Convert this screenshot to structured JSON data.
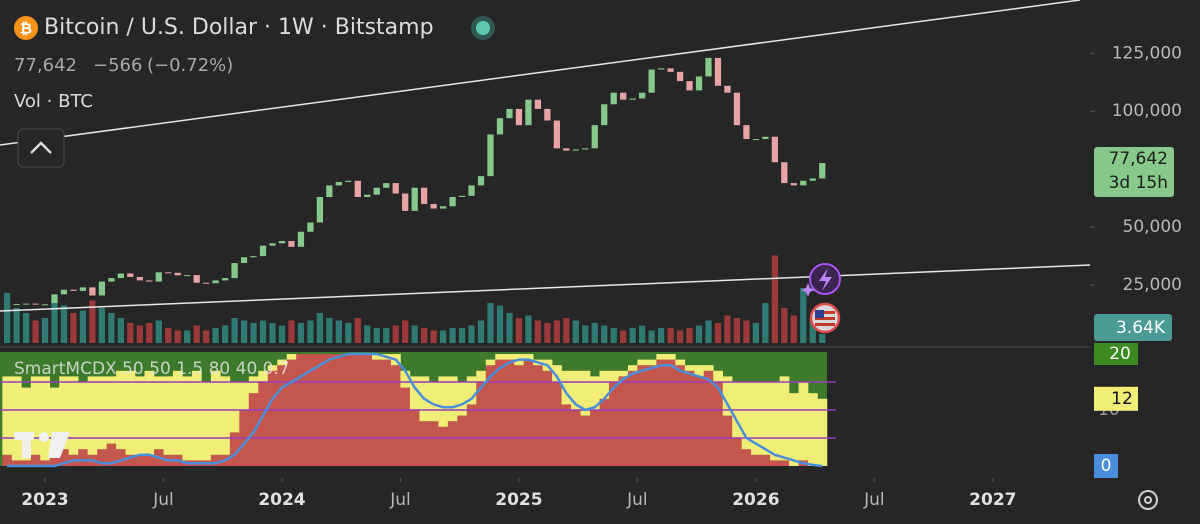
{
  "header": {
    "title": "Bitcoin / U.S. Dollar · 1W · Bitstamp",
    "price": "77,642",
    "change": "−566",
    "change_pct": "(−0.72%)",
    "volume_label": "Vol · BTC"
  },
  "chart_data": [
    {
      "type": "candlestick",
      "x": [
        2022.84,
        2022.88,
        2022.92,
        2022.96,
        2023,
        2023.04,
        2023.08,
        2023.12,
        2023.16,
        2023.2,
        2023.24,
        2023.28,
        2023.32,
        2023.36,
        2023.4,
        2023.44,
        2023.48,
        2023.52,
        2023.56,
        2023.6,
        2023.64,
        2023.68,
        2023.72,
        2023.76,
        2023.8,
        2023.84,
        2023.88,
        2023.92,
        2023.96,
        2024,
        2024.04,
        2024.08,
        2024.12,
        2024.16,
        2024.2,
        2024.24,
        2024.28,
        2024.32,
        2024.36,
        2024.4,
        2024.44,
        2024.48,
        2024.52,
        2024.56,
        2024.6,
        2024.64,
        2024.68,
        2024.72,
        2024.76,
        2024.8,
        2024.84,
        2024.88,
        2024.92,
        2024.96,
        2025,
        2025.04,
        2025.08,
        2025.12,
        2025.16,
        2025.2,
        2025.24,
        2025.28,
        2025.32,
        2025.36,
        2025.4,
        2025.44,
        2025.48,
        2025.52,
        2025.56,
        2025.6,
        2025.64,
        2025.68,
        2025.72,
        2025.76,
        2025.8,
        2025.84,
        2025.88,
        2025.92,
        2025.96,
        2026,
        2026.04,
        2026.08,
        2026.12,
        2026.16,
        2026.2,
        2026.24,
        2026.28
      ],
      "values": [
        16500,
        16800,
        17000,
        16600,
        16700,
        21000,
        23000,
        22500,
        24000,
        20500,
        26500,
        28000,
        30000,
        28500,
        27000,
        26500,
        30500,
        30300,
        29200,
        29300,
        26000,
        25800,
        27000,
        28000,
        34500,
        37000,
        37500,
        42000,
        43000,
        44000,
        41500,
        48000,
        52000,
        63000,
        68000,
        69500,
        70000,
        63000,
        64000,
        67000,
        69000,
        64500,
        57000,
        67000,
        60000,
        58000,
        59000,
        63000,
        63500,
        68000,
        72000,
        90000,
        97000,
        101000,
        94000,
        105000,
        101000,
        96000,
        84000,
        83000,
        83500,
        84000,
        94000,
        103000,
        108000,
        105000,
        105500,
        108000,
        118000,
        118500,
        117000,
        113000,
        109000,
        115000,
        123000,
        111000,
        108000,
        94000,
        88000,
        88000,
        89000,
        78000,
        69000,
        68000,
        70000,
        71000,
        77642
      ],
      "last_value_label": "77,642",
      "countdown": "3d 15h",
      "up_color": "#86c98a",
      "down_color": "#e8a3a6",
      "xlim": [
        2022.81,
        2027.41
      ],
      "xticks": [
        {
          "value": 2023,
          "label": "2023"
        },
        {
          "value": 2023.5,
          "label": "Jul"
        },
        {
          "value": 2024,
          "label": "2024"
        },
        {
          "value": 2024.5,
          "label": "Jul"
        },
        {
          "value": 2025,
          "label": "2025"
        },
        {
          "value": 2025.5,
          "label": "Jul"
        },
        {
          "value": 2026,
          "label": "2026"
        },
        {
          "value": 2026.5,
          "label": "Jul"
        },
        {
          "value": 2027,
          "label": "2027"
        }
      ],
      "ylim": [
        0,
        148000
      ],
      "yticks": [
        {
          "value": 25000,
          "label": "25,000"
        },
        {
          "value": 50000,
          "label": "50,000"
        },
        {
          "value": 100000,
          "label": "100,000"
        },
        {
          "value": 125000,
          "label": "125,000"
        }
      ]
    },
    {
      "type": "volume",
      "values": [
        20000,
        14000,
        12000,
        9000,
        10000,
        16000,
        15000,
        12000,
        13000,
        17000,
        14000,
        12000,
        10000,
        8000,
        7000,
        8000,
        9000,
        6000,
        5000,
        5000,
        7000,
        5000,
        6000,
        7000,
        10000,
        9000,
        8000,
        9000,
        8000,
        7000,
        9000,
        8000,
        9000,
        12000,
        10000,
        9000,
        8000,
        10000,
        7000,
        6000,
        6000,
        7000,
        9000,
        7000,
        6000,
        5000,
        5000,
        6000,
        6000,
        7000,
        9000,
        16000,
        15000,
        12000,
        10000,
        11000,
        9000,
        8000,
        9000,
        10000,
        9000,
        7000,
        8000,
        7000,
        6000,
        5000,
        6000,
        7000,
        5000,
        6000,
        6000,
        5000,
        6000,
        7000,
        9000,
        8000,
        11000,
        10000,
        9000,
        8000,
        16000,
        35000,
        14000,
        11000,
        22000,
        10000,
        3640
      ],
      "last_value_label": "3.64K",
      "up_color": "#2f7a73",
      "down_color": "#9c3a3a",
      "label_color": "#4a9b94",
      "ylim": [
        0,
        40000
      ]
    },
    {
      "type": "stacked_bar",
      "title": "SmartMCDX 50 50 1.5 80 40 0.7",
      "background_color": "#3e7a2c",
      "ylim": [
        0,
        20
      ],
      "yticks": [
        10
      ],
      "levels": [
        15,
        10,
        5
      ],
      "level_color": "#9b3db8",
      "series": [
        {
          "color": "#c4564e",
          "values": [
            2,
            1,
            1,
            2,
            1,
            2,
            3,
            2,
            3,
            2,
            3,
            4,
            3,
            2,
            2,
            2,
            3,
            2,
            2,
            1,
            1,
            1,
            2,
            2,
            6,
            10,
            13,
            15,
            17,
            18,
            19,
            20,
            20,
            20,
            20,
            20,
            20,
            20,
            20,
            19,
            19,
            18,
            14,
            10,
            8,
            8,
            7,
            8,
            9,
            11,
            15,
            18,
            19,
            19,
            18,
            19,
            18,
            17,
            15,
            11,
            10,
            9,
            10,
            12,
            15,
            16,
            17,
            18,
            18,
            19,
            19,
            18,
            17,
            16,
            17,
            15,
            9,
            5,
            3,
            2,
            2,
            1,
            1,
            0,
            1,
            0,
            0
          ]
        },
        {
          "color": "#f1ee78",
          "values": [
            14,
            15,
            13,
            14,
            15,
            12,
            13,
            14,
            12,
            14,
            13,
            12,
            14,
            15,
            14,
            15,
            13,
            14,
            15,
            15,
            16,
            14,
            15,
            14,
            9,
            5,
            3,
            2,
            1,
            1,
            1,
            0,
            0,
            0,
            0,
            0,
            0,
            0,
            0,
            1,
            1,
            2,
            3,
            6,
            8,
            7,
            9,
            8,
            6,
            5,
            2,
            1,
            1,
            1,
            2,
            1,
            1,
            2,
            3,
            6,
            7,
            8,
            6,
            5,
            2,
            1,
            1,
            1,
            1,
            1,
            1,
            1,
            1,
            2,
            1,
            2,
            7,
            10,
            12,
            13,
            13,
            14,
            15,
            13,
            14,
            13,
            12
          ]
        },
        {
          "type": "line",
          "color": "#4b8fdc",
          "values": [
            0,
            0,
            0,
            0,
            0,
            0,
            0.5,
            1,
            1,
            1,
            0.5,
            0.5,
            1,
            1.5,
            2,
            2,
            1.5,
            1,
            1,
            0.5,
            0.5,
            0.5,
            0.5,
            1,
            2,
            4,
            6,
            9,
            12,
            14,
            15,
            16,
            17,
            18,
            19,
            19.5,
            20,
            20,
            20,
            20,
            19.5,
            19,
            17,
            14,
            12,
            11,
            10.5,
            10.5,
            11,
            12,
            14,
            16,
            17.5,
            18.5,
            19,
            19,
            18.5,
            18,
            16,
            13,
            11,
            10,
            10.5,
            12,
            14,
            15.5,
            16.5,
            17,
            17.5,
            18,
            18,
            17,
            16.5,
            16,
            15.5,
            14,
            11,
            8,
            5,
            4,
            3,
            2,
            1.5,
            1,
            0.5,
            0.2,
            0
          ]
        }
      ]
    }
  ]
}
